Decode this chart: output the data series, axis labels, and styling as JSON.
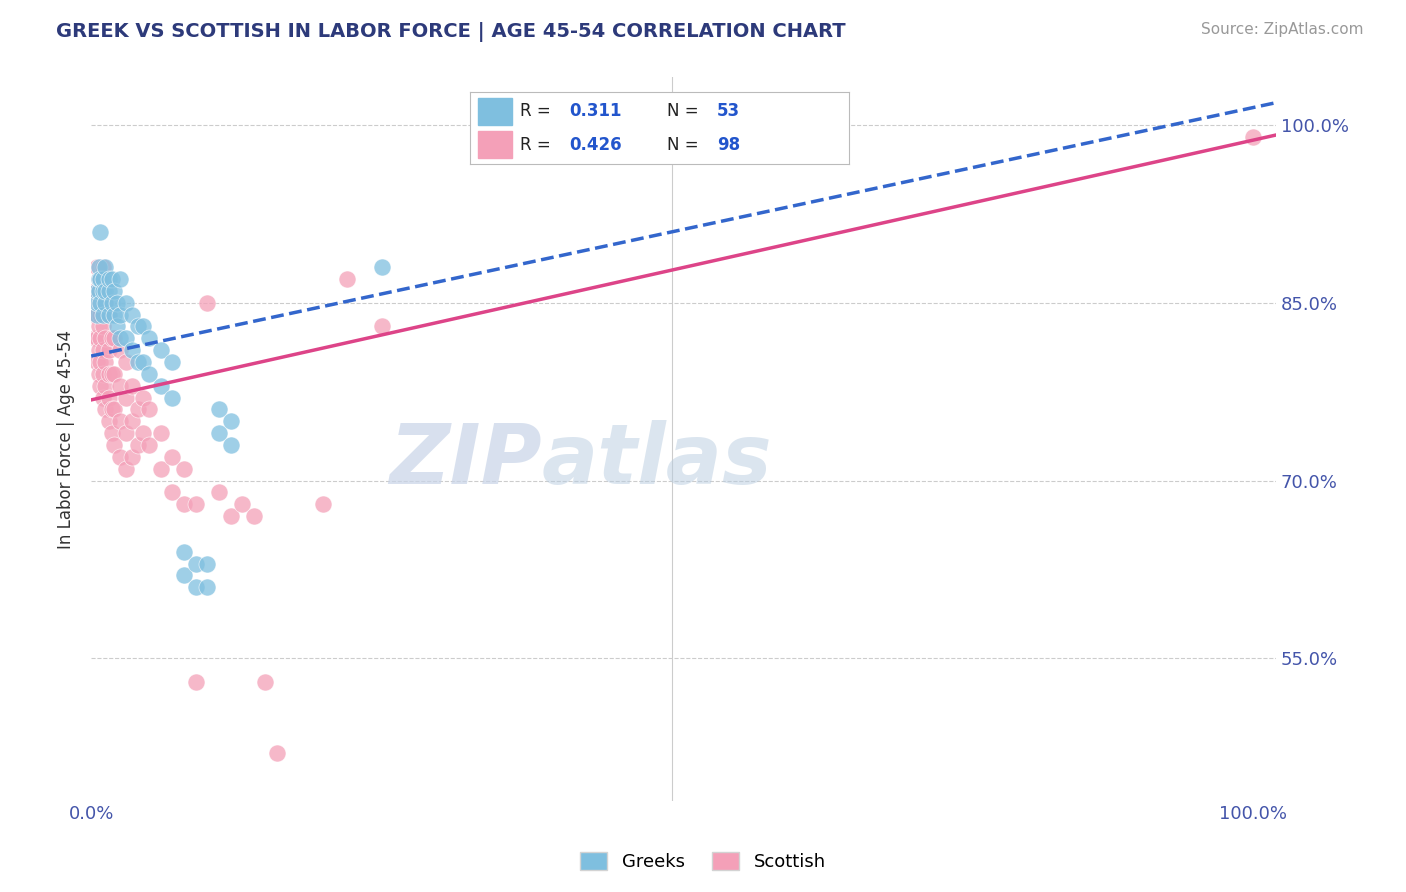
{
  "title": "GREEK VS SCOTTISH IN LABOR FORCE | AGE 45-54 CORRELATION CHART",
  "source": "Source: ZipAtlas.com",
  "ylabel": "In Labor Force | Age 45-54",
  "yticks": [
    "55.0%",
    "70.0%",
    "85.0%",
    "100.0%"
  ],
  "ytick_vals": [
    0.55,
    0.7,
    0.85,
    1.0
  ],
  "xtick_left": "0.0%",
  "xtick_right": "100.0%",
  "greek_color": "#7fbfdf",
  "scottish_color": "#f4a0b8",
  "greek_R": 0.311,
  "greek_N": 53,
  "scottish_R": 0.426,
  "scottish_N": 98,
  "trend_blue": "#3366cc",
  "trend_pink": "#dd4488",
  "watermark_zip": "ZIP",
  "watermark_atlas": "atlas",
  "greek_points": [
    [
      0.005,
      0.84
    ],
    [
      0.005,
      0.85
    ],
    [
      0.005,
      0.86
    ],
    [
      0.007,
      0.86
    ],
    [
      0.007,
      0.87
    ],
    [
      0.007,
      0.88
    ],
    [
      0.008,
      0.85
    ],
    [
      0.008,
      0.87
    ],
    [
      0.008,
      0.91
    ],
    [
      0.01,
      0.84
    ],
    [
      0.01,
      0.86
    ],
    [
      0.01,
      0.87
    ],
    [
      0.012,
      0.85
    ],
    [
      0.012,
      0.86
    ],
    [
      0.012,
      0.88
    ],
    [
      0.015,
      0.84
    ],
    [
      0.015,
      0.86
    ],
    [
      0.015,
      0.87
    ],
    [
      0.018,
      0.85
    ],
    [
      0.018,
      0.87
    ],
    [
      0.02,
      0.84
    ],
    [
      0.02,
      0.86
    ],
    [
      0.022,
      0.83
    ],
    [
      0.022,
      0.85
    ],
    [
      0.025,
      0.82
    ],
    [
      0.025,
      0.84
    ],
    [
      0.025,
      0.87
    ],
    [
      0.03,
      0.82
    ],
    [
      0.03,
      0.85
    ],
    [
      0.035,
      0.81
    ],
    [
      0.035,
      0.84
    ],
    [
      0.04,
      0.8
    ],
    [
      0.04,
      0.83
    ],
    [
      0.045,
      0.8
    ],
    [
      0.045,
      0.83
    ],
    [
      0.05,
      0.79
    ],
    [
      0.05,
      0.82
    ],
    [
      0.06,
      0.78
    ],
    [
      0.06,
      0.81
    ],
    [
      0.07,
      0.77
    ],
    [
      0.07,
      0.8
    ],
    [
      0.08,
      0.62
    ],
    [
      0.08,
      0.64
    ],
    [
      0.09,
      0.61
    ],
    [
      0.09,
      0.63
    ],
    [
      0.1,
      0.61
    ],
    [
      0.1,
      0.63
    ],
    [
      0.11,
      0.74
    ],
    [
      0.11,
      0.76
    ],
    [
      0.12,
      0.73
    ],
    [
      0.12,
      0.75
    ],
    [
      0.25,
      0.88
    ]
  ],
  "scottish_points": [
    [
      0.003,
      0.82
    ],
    [
      0.003,
      0.84
    ],
    [
      0.003,
      0.86
    ],
    [
      0.005,
      0.8
    ],
    [
      0.005,
      0.82
    ],
    [
      0.005,
      0.84
    ],
    [
      0.005,
      0.86
    ],
    [
      0.005,
      0.88
    ],
    [
      0.007,
      0.79
    ],
    [
      0.007,
      0.81
    ],
    [
      0.007,
      0.83
    ],
    [
      0.007,
      0.85
    ],
    [
      0.007,
      0.87
    ],
    [
      0.008,
      0.78
    ],
    [
      0.008,
      0.8
    ],
    [
      0.008,
      0.82
    ],
    [
      0.008,
      0.84
    ],
    [
      0.008,
      0.87
    ],
    [
      0.01,
      0.77
    ],
    [
      0.01,
      0.79
    ],
    [
      0.01,
      0.81
    ],
    [
      0.01,
      0.83
    ],
    [
      0.01,
      0.85
    ],
    [
      0.01,
      0.88
    ],
    [
      0.012,
      0.76
    ],
    [
      0.012,
      0.78
    ],
    [
      0.012,
      0.8
    ],
    [
      0.012,
      0.82
    ],
    [
      0.012,
      0.85
    ],
    [
      0.015,
      0.75
    ],
    [
      0.015,
      0.77
    ],
    [
      0.015,
      0.79
    ],
    [
      0.015,
      0.81
    ],
    [
      0.015,
      0.84
    ],
    [
      0.018,
      0.74
    ],
    [
      0.018,
      0.76
    ],
    [
      0.018,
      0.79
    ],
    [
      0.018,
      0.82
    ],
    [
      0.02,
      0.73
    ],
    [
      0.02,
      0.76
    ],
    [
      0.02,
      0.79
    ],
    [
      0.02,
      0.82
    ],
    [
      0.025,
      0.72
    ],
    [
      0.025,
      0.75
    ],
    [
      0.025,
      0.78
    ],
    [
      0.025,
      0.81
    ],
    [
      0.03,
      0.71
    ],
    [
      0.03,
      0.74
    ],
    [
      0.03,
      0.77
    ],
    [
      0.03,
      0.8
    ],
    [
      0.035,
      0.72
    ],
    [
      0.035,
      0.75
    ],
    [
      0.035,
      0.78
    ],
    [
      0.04,
      0.73
    ],
    [
      0.04,
      0.76
    ],
    [
      0.045,
      0.74
    ],
    [
      0.045,
      0.77
    ],
    [
      0.05,
      0.73
    ],
    [
      0.05,
      0.76
    ],
    [
      0.06,
      0.71
    ],
    [
      0.06,
      0.74
    ],
    [
      0.07,
      0.69
    ],
    [
      0.07,
      0.72
    ],
    [
      0.08,
      0.68
    ],
    [
      0.08,
      0.71
    ],
    [
      0.09,
      0.53
    ],
    [
      0.09,
      0.68
    ],
    [
      0.1,
      0.85
    ],
    [
      0.11,
      0.69
    ],
    [
      0.12,
      0.67
    ],
    [
      0.13,
      0.68
    ],
    [
      0.14,
      0.67
    ],
    [
      0.15,
      0.53
    ],
    [
      0.16,
      0.47
    ],
    [
      0.2,
      0.68
    ],
    [
      0.22,
      0.87
    ],
    [
      0.25,
      0.83
    ],
    [
      1.0,
      0.99
    ]
  ]
}
